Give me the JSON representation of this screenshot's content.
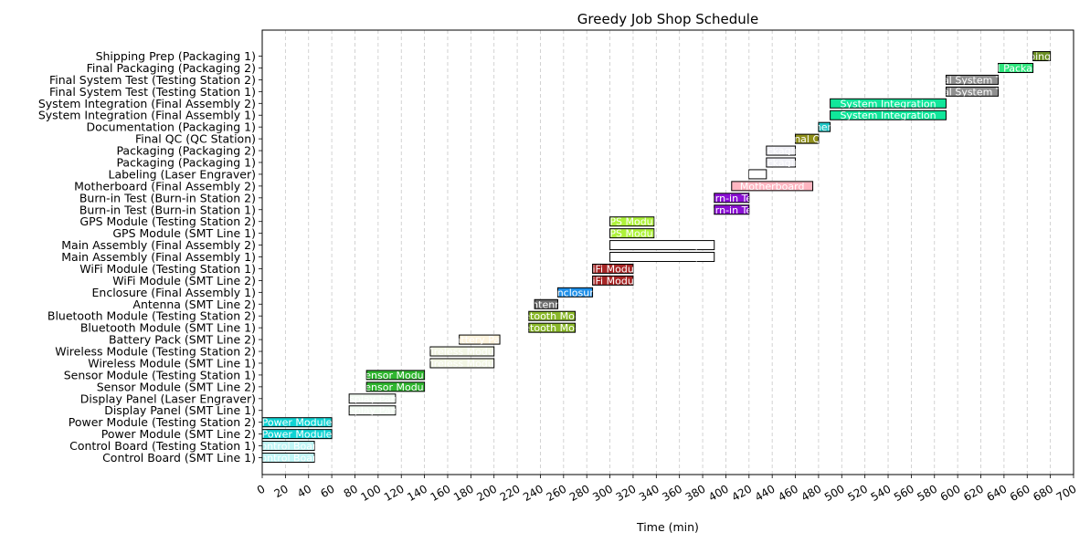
{
  "chart_data": {
    "type": "gantt",
    "title": "Greedy Job Shop Schedule",
    "xlabel": "Time (min)",
    "ylabel": "",
    "xlim": [
      0,
      700
    ],
    "x_ticks": [
      0,
      20,
      40,
      60,
      80,
      100,
      120,
      140,
      160,
      180,
      200,
      220,
      240,
      260,
      280,
      300,
      320,
      340,
      360,
      380,
      400,
      420,
      440,
      460,
      480,
      500,
      520,
      540,
      560,
      580,
      600,
      620,
      640,
      660,
      680,
      700
    ],
    "grid": "vertical dashed",
    "rows": [
      "Control Board (SMT Line 1)",
      "Control Board (Testing Station 1)",
      "Power Module (SMT Line 2)",
      "Power Module (Testing Station 2)",
      "Display Panel (SMT Line 1)",
      "Display Panel (Laser Engraver)",
      "Sensor Module (SMT Line 2)",
      "Sensor Module (Testing Station 1)",
      "Wireless Module (SMT Line 1)",
      "Wireless Module (Testing Station 2)",
      "Battery Pack (SMT Line 2)",
      "Bluetooth Module (SMT Line 1)",
      "Bluetooth Module (Testing Station 2)",
      "Antenna (SMT Line 2)",
      "Enclosure (Final Assembly 1)",
      "WiFi Module (SMT Line 2)",
      "WiFi Module (Testing Station 1)",
      "Main Assembly (Final Assembly 1)",
      "Main Assembly (Final Assembly 2)",
      "GPS Module (SMT Line 1)",
      "GPS Module (Testing Station 2)",
      "Burn-in Test (Burn-in Station 1)",
      "Burn-in Test (Burn-in Station 2)",
      "Motherboard (Final Assembly 2)",
      "Labeling (Laser Engraver)",
      "Packaging (Packaging 1)",
      "Packaging (Packaging 2)",
      "Final QC (QC Station)",
      "Documentation (Packaging 1)",
      "System Integration (Final Assembly 1)",
      "System Integration (Final Assembly 2)",
      "Final System Test (Testing Station 1)",
      "Final System Test (Testing Station 2)",
      "Final Packaging (Packaging 2)",
      "Shipping Prep (Packaging 1)"
    ],
    "tasks": [
      {
        "row": 0,
        "start": 0,
        "end": 45,
        "label": "Control Board",
        "color": "#bff5f5"
      },
      {
        "row": 1,
        "start": 0,
        "end": 45,
        "label": "Control Board",
        "color": "#bff5f5"
      },
      {
        "row": 2,
        "start": 0,
        "end": 60,
        "label": "Power Module",
        "color": "#0fd3d3"
      },
      {
        "row": 3,
        "start": 0,
        "end": 60,
        "label": "Power Module",
        "color": "#0fd3d3"
      },
      {
        "row": 4,
        "start": 75,
        "end": 115,
        "label": "Display Panel",
        "color": "#f3fbf3"
      },
      {
        "row": 5,
        "start": 75,
        "end": 115,
        "label": "Display Panel",
        "color": "#f3fbf3"
      },
      {
        "row": 6,
        "start": 90,
        "end": 140,
        "label": "Sensor Module",
        "color": "#2fb52f"
      },
      {
        "row": 7,
        "start": 90,
        "end": 140,
        "label": "Sensor Module",
        "color": "#2fb52f"
      },
      {
        "row": 8,
        "start": 145,
        "end": 200,
        "label": "Wireless Module",
        "color": "#f2f6e4"
      },
      {
        "row": 9,
        "start": 145,
        "end": 200,
        "label": "Wireless Module",
        "color": "#f2f6e4"
      },
      {
        "row": 10,
        "start": 170,
        "end": 205,
        "label": "Battery Pack",
        "color": "#fdf3dc"
      },
      {
        "row": 11,
        "start": 230,
        "end": 270,
        "label": "Bluetooth Module",
        "color": "#8ab82a"
      },
      {
        "row": 12,
        "start": 230,
        "end": 270,
        "label": "Bluetooth Module",
        "color": "#8ab82a"
      },
      {
        "row": 13,
        "start": 235,
        "end": 255,
        "label": "Antenna",
        "color": "#6e6e6e"
      },
      {
        "row": 14,
        "start": 255,
        "end": 285,
        "label": "Enclosure",
        "color": "#1e8fe8"
      },
      {
        "row": 15,
        "start": 285,
        "end": 320,
        "label": "WiFi Module",
        "color": "#a62626"
      },
      {
        "row": 16,
        "start": 285,
        "end": 320,
        "label": "WiFi Module",
        "color": "#a62626"
      },
      {
        "row": 17,
        "start": 300,
        "end": 390,
        "label": "Main Assembly",
        "color": "#ffffff"
      },
      {
        "row": 18,
        "start": 300,
        "end": 390,
        "label": "Main Assembly",
        "color": "#ffffff"
      },
      {
        "row": 19,
        "start": 300,
        "end": 338,
        "label": "GPS Module",
        "color": "#aef23a"
      },
      {
        "row": 20,
        "start": 300,
        "end": 338,
        "label": "GPS Module",
        "color": "#aef23a"
      },
      {
        "row": 21,
        "start": 390,
        "end": 420,
        "label": "Burn-in Test",
        "color": "#8a0fd3"
      },
      {
        "row": 22,
        "start": 390,
        "end": 420,
        "label": "Burn-in Test",
        "color": "#8a0fd3"
      },
      {
        "row": 23,
        "start": 405,
        "end": 475,
        "label": "Motherboard",
        "color": "#ffb6c1"
      },
      {
        "row": 24,
        "start": 420,
        "end": 435,
        "label": "Labeling",
        "color": "#ffffff"
      },
      {
        "row": 25,
        "start": 435,
        "end": 460,
        "label": "Packaging",
        "color": "#f0f0f6"
      },
      {
        "row": 26,
        "start": 435,
        "end": 460,
        "label": "Packaging",
        "color": "#f0f0f6"
      },
      {
        "row": 27,
        "start": 460,
        "end": 480,
        "label": "Final QC",
        "color": "#8f8f1a"
      },
      {
        "row": 28,
        "start": 480,
        "end": 490,
        "label": "Documentation",
        "color": "#1fc6c6"
      },
      {
        "row": 29,
        "start": 490,
        "end": 590,
        "label": "System Integration",
        "color": "#10e69a"
      },
      {
        "row": 30,
        "start": 490,
        "end": 590,
        "label": "System Integration",
        "color": "#10e69a"
      },
      {
        "row": 31,
        "start": 590,
        "end": 635,
        "label": "Final System Test",
        "color": "#909090"
      },
      {
        "row": 32,
        "start": 590,
        "end": 635,
        "label": "Final System Test",
        "color": "#909090"
      },
      {
        "row": 33,
        "start": 635,
        "end": 665,
        "label": "Final Packaging",
        "color": "#2de67c"
      },
      {
        "row": 34,
        "start": 665,
        "end": 680,
        "label": "Shipping Prep",
        "color": "#6b8e23"
      }
    ]
  }
}
